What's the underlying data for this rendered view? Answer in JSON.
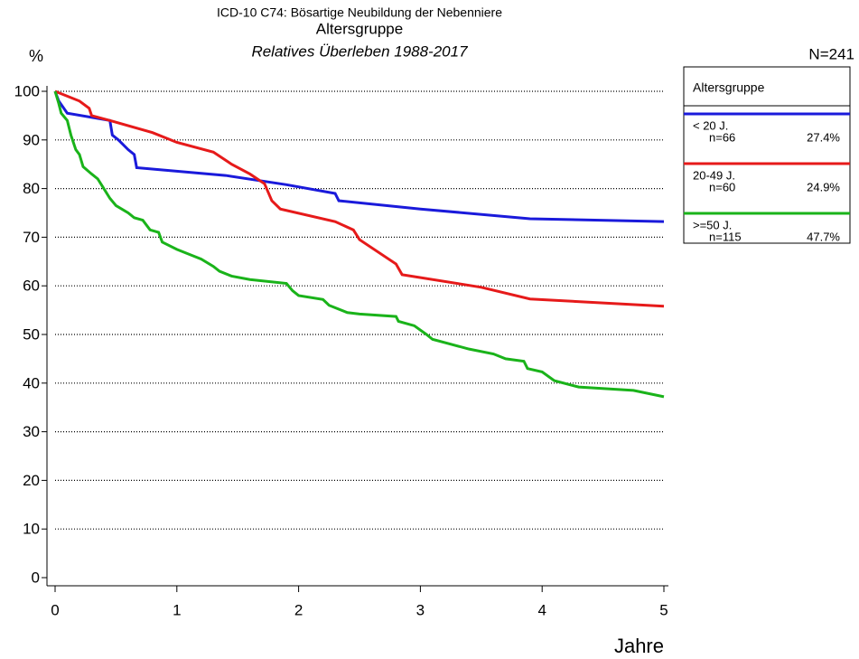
{
  "chart_data": {
    "type": "line",
    "title": "ICD-10 C74: Bösartige Neubildung der Nebenniere",
    "subtitle": "Altersgruppe",
    "subtitle2": "Relatives Überleben 1988-2017",
    "ylabel": "%",
    "xlabel": "Jahre",
    "total": "N=241",
    "legend_title": "Altersgruppe",
    "legend": "right",
    "grid": true,
    "xlim": [
      0,
      5
    ],
    "xticks": [
      0,
      1,
      2,
      3,
      4,
      5
    ],
    "ylim": [
      0,
      100
    ],
    "yticks": [
      0,
      10,
      20,
      30,
      40,
      50,
      60,
      70,
      80,
      90,
      100
    ],
    "series": [
      {
        "name": "< 20 J.",
        "n": "n=66",
        "share": "27.4%",
        "color": "#1a1adb",
        "x": [
          0,
          0.03,
          0.1,
          0.45,
          0.47,
          0.52,
          0.6,
          0.65,
          0.67,
          1.4,
          1.9,
          2.3,
          2.33,
          3,
          3.9,
          5
        ],
        "values": [
          100,
          98,
          95.5,
          94,
          91,
          90,
          88,
          87,
          84.3,
          82.7,
          80.8,
          79,
          77.5,
          75.8,
          73.8,
          73.2
        ]
      },
      {
        "name": "20-49 J.",
        "n": "n=60",
        "share": "24.9%",
        "color": "#e61a1a",
        "x": [
          0,
          0.1,
          0.2,
          0.28,
          0.3,
          0.45,
          0.8,
          1,
          1.3,
          1.45,
          1.6,
          1.72,
          1.78,
          1.85,
          2.3,
          2.45,
          2.5,
          2.8,
          2.85,
          3.5,
          3.9,
          5
        ],
        "values": [
          100,
          99,
          98,
          96.5,
          95,
          94,
          91.5,
          89.5,
          87.5,
          85,
          83,
          81,
          77.5,
          75.8,
          73.2,
          71.5,
          69.5,
          64.5,
          62.3,
          59.7,
          57.3,
          55.8
        ]
      },
      {
        "name": ">=50 J.",
        "n": "n=115",
        "share": "47.7%",
        "color": "#1ab31a",
        "x": [
          0,
          0.03,
          0.05,
          0.1,
          0.13,
          0.17,
          0.2,
          0.23,
          0.3,
          0.35,
          0.4,
          0.45,
          0.5,
          0.6,
          0.65,
          0.72,
          0.78,
          0.85,
          0.88,
          1,
          1.1,
          1.2,
          1.3,
          1.35,
          1.45,
          1.6,
          1.9,
          1.95,
          2,
          2.2,
          2.25,
          2.4,
          2.5,
          2.8,
          2.82,
          2.95,
          3.05,
          3.1,
          3.4,
          3.6,
          3.7,
          3.85,
          3.88,
          4,
          4.1,
          4.3,
          4.75,
          5
        ],
        "values": [
          100,
          97.5,
          95.5,
          94,
          91,
          88,
          87,
          84.5,
          83,
          82,
          80,
          78,
          76.5,
          75,
          74,
          73.5,
          71.5,
          71,
          69,
          67.5,
          66.5,
          65.5,
          64,
          63,
          62,
          61.3,
          60.5,
          59,
          58,
          57.2,
          56,
          54.5,
          54.2,
          53.7,
          52.7,
          51.8,
          50,
          49,
          47,
          46,
          45,
          44.5,
          43,
          42.3,
          40.5,
          39.2,
          38.5,
          37.2
        ]
      }
    ]
  }
}
